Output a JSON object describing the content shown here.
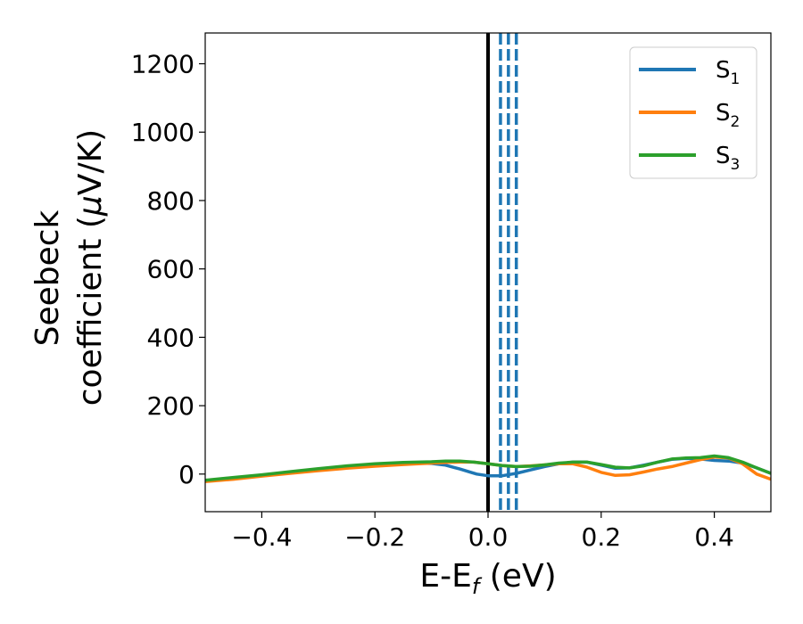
{
  "chart_data": {
    "type": "line",
    "xlabel": {
      "main": "E-E",
      "sub": "f",
      "suffix": " (eV)"
    },
    "ylabel": {
      "line1": "Seebeck",
      "line2_prefix": "coefficient  (",
      "line2_mu": "μ",
      "line2_suffix": "V/K)"
    },
    "xlim": [
      -0.5,
      0.5
    ],
    "ylim": [
      -110,
      1290
    ],
    "xticks": [
      -0.4,
      -0.2,
      0.0,
      0.2,
      0.4
    ],
    "xtick_labels": [
      "−0.4",
      "−0.2",
      "0.0",
      "0.2",
      "0.4"
    ],
    "yticks": [
      0,
      200,
      400,
      600,
      800,
      1000,
      1200
    ],
    "ytick_labels": [
      "0",
      "200",
      "400",
      "600",
      "800",
      "1000",
      "1200"
    ],
    "grid": false,
    "legend_position": "top-right",
    "vertical_lines": [
      {
        "x": 0.0,
        "style": "solid",
        "color": "#000000"
      },
      {
        "x": 0.022,
        "style": "dashed",
        "color": "#1f77b4"
      },
      {
        "x": 0.036,
        "style": "dashed",
        "color": "#1f77b4"
      },
      {
        "x": 0.05,
        "style": "dashed",
        "color": "#1f77b4"
      }
    ],
    "series": [
      {
        "name": "S",
        "sub": "1",
        "color": "#1f77b4",
        "x": [
          -0.5,
          -0.45,
          -0.4,
          -0.35,
          -0.3,
          -0.25,
          -0.2,
          -0.15,
          -0.1,
          -0.075,
          -0.05,
          -0.03,
          -0.02,
          0.0,
          0.025,
          0.05,
          0.075,
          0.1,
          0.125,
          0.15,
          0.175,
          0.2,
          0.225,
          0.25,
          0.275,
          0.3,
          0.325,
          0.35,
          0.375,
          0.4,
          0.425,
          0.45,
          0.475,
          0.5
        ],
        "y": [
          -20,
          -12,
          -3,
          5,
          14,
          22,
          28,
          32,
          31,
          26,
          15,
          5,
          0,
          -5,
          -5,
          2,
          12,
          22,
          30,
          35,
          35,
          26,
          17,
          18,
          26,
          35,
          43,
          46,
          44,
          40,
          38,
          32,
          18,
          2
        ]
      },
      {
        "name": "S",
        "sub": "2",
        "color": "#ff7f0e",
        "x": [
          -0.5,
          -0.45,
          -0.4,
          -0.35,
          -0.3,
          -0.25,
          -0.2,
          -0.15,
          -0.1,
          -0.075,
          -0.05,
          -0.025,
          0.0,
          0.025,
          0.05,
          0.075,
          0.1,
          0.125,
          0.15,
          0.175,
          0.2,
          0.225,
          0.25,
          0.275,
          0.3,
          0.325,
          0.35,
          0.375,
          0.4,
          0.425,
          0.45,
          0.475,
          0.5
        ],
        "y": [
          -22,
          -15,
          -6,
          2,
          10,
          17,
          23,
          28,
          32,
          34,
          35,
          35,
          30,
          25,
          22,
          24,
          27,
          30,
          30,
          20,
          5,
          -4,
          -2,
          6,
          15,
          22,
          32,
          42,
          50,
          47,
          30,
          0,
          -15
        ]
      },
      {
        "name": "S",
        "sub": "3",
        "color": "#2ca02c",
        "x": [
          -0.5,
          -0.45,
          -0.4,
          -0.35,
          -0.3,
          -0.25,
          -0.2,
          -0.15,
          -0.1,
          -0.075,
          -0.05,
          -0.025,
          0.0,
          0.025,
          0.05,
          0.075,
          0.1,
          0.125,
          0.15,
          0.175,
          0.2,
          0.225,
          0.25,
          0.275,
          0.3,
          0.325,
          0.35,
          0.375,
          0.4,
          0.425,
          0.45,
          0.475,
          0.5
        ],
        "y": [
          -18,
          -10,
          -2,
          7,
          16,
          24,
          30,
          34,
          36,
          38,
          38,
          35,
          30,
          25,
          22,
          23,
          27,
          32,
          35,
          35,
          28,
          20,
          18,
          24,
          35,
          44,
          47,
          48,
          53,
          48,
          35,
          18,
          2
        ]
      }
    ]
  }
}
